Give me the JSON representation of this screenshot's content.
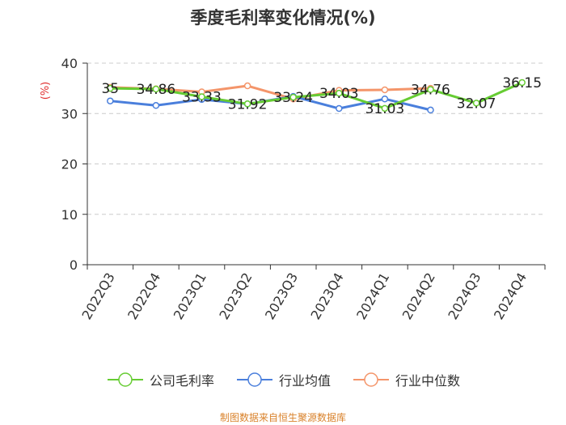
{
  "title": "季度毛利率变化情况(%)",
  "source": "制图数据来自恒生聚源数据库",
  "chart_data": {
    "type": "line",
    "ylabel": "(%)",
    "ylim": [
      0,
      40
    ],
    "yticks": [
      0,
      10,
      20,
      30,
      40
    ],
    "grid": true,
    "legend_position": "bottom",
    "categories": [
      "2022Q3",
      "2022Q4",
      "2023Q1",
      "2023Q2",
      "2023Q3",
      "2023Q4",
      "2024Q1",
      "2024Q2",
      "2024Q3",
      "2024Q4"
    ],
    "series": [
      {
        "name": "公司毛利率",
        "color": "#66cc33",
        "values": [
          35,
          34.86,
          33.33,
          31.92,
          33.24,
          34.03,
          31.03,
          34.76,
          32.07,
          36.15
        ],
        "labels": [
          "35",
          "34.86",
          "33.33",
          "31.92",
          "33.24",
          "34.03",
          "31.03",
          "34.76",
          "32.07",
          "36.15"
        ]
      },
      {
        "name": "行业均值",
        "color": "#4a7fdc",
        "values": [
          32.5,
          31.6,
          32.8,
          31.9,
          33.4,
          31.0,
          32.9,
          30.7,
          null,
          null
        ]
      },
      {
        "name": "行业中位数",
        "color": "#f4956a",
        "values": [
          35.2,
          34.9,
          34.3,
          35.5,
          32.9,
          34.6,
          34.7,
          35.0,
          null,
          null
        ]
      }
    ]
  }
}
